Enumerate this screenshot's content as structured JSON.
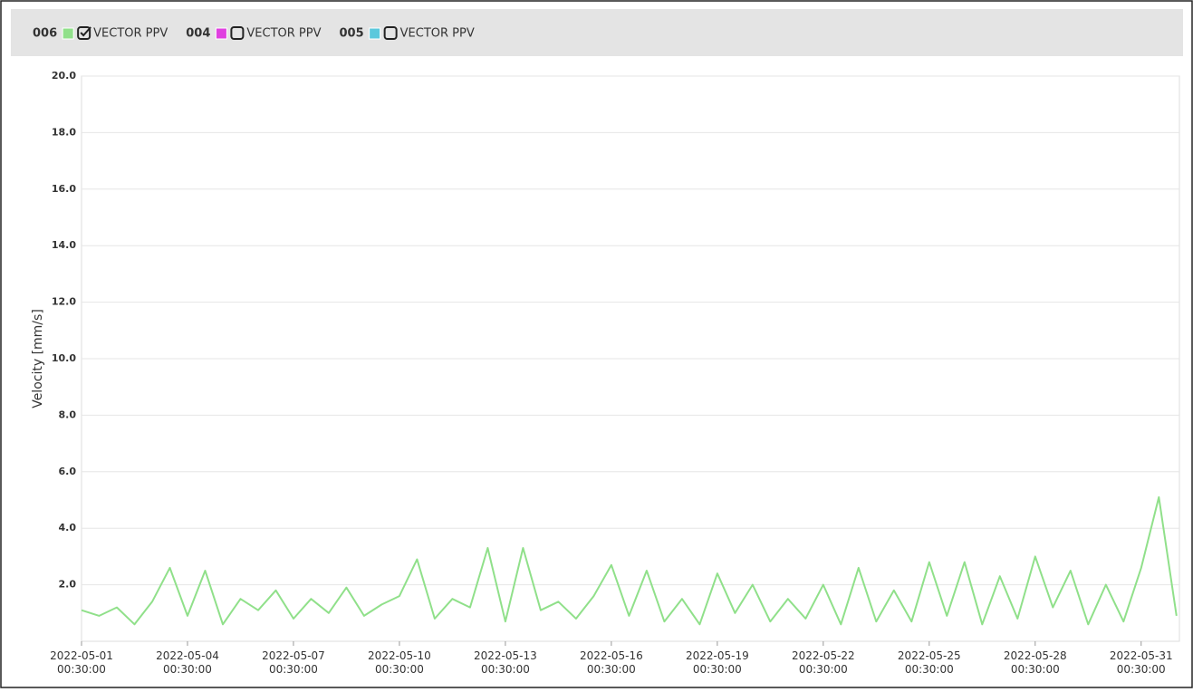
{
  "chart_data": {
    "type": "line",
    "ylabel": "Velocity [mm/s]",
    "series": [
      {
        "name": "006",
        "label": "VECTOR PPV",
        "color": "#90e08a",
        "checked": true,
        "values": [
          1.1,
          0.9,
          1.2,
          0.6,
          1.4,
          2.6,
          0.9,
          2.5,
          0.6,
          1.5,
          1.1,
          1.8,
          0.8,
          1.5,
          1.0,
          1.9,
          0.9,
          1.3,
          1.6,
          2.9,
          0.8,
          1.5,
          1.2,
          3.3,
          0.7,
          3.3,
          1.1,
          1.4,
          0.8,
          1.6,
          2.7,
          0.9,
          2.5,
          0.7,
          1.5,
          0.6,
          2.4,
          1.0,
          2.0,
          0.7,
          1.5,
          0.8,
          2.0,
          0.6,
          2.6,
          0.7,
          1.8,
          0.7,
          2.8,
          0.9,
          2.8,
          0.6,
          2.3,
          0.8,
          3.0,
          1.2,
          2.5,
          0.6,
          2.0,
          0.7,
          2.6,
          5.1,
          0.9
        ]
      },
      {
        "name": "004",
        "label": "VECTOR PPV",
        "color": "#e040e0",
        "checked": false
      },
      {
        "name": "005",
        "label": "VECTOR PPV",
        "color": "#5bc8dc",
        "checked": false
      }
    ],
    "x": [
      "2022-05-01 00:30:00",
      "2022-05-01 12:30:00",
      "2022-05-02 00:30:00",
      "2022-05-02 12:30:00",
      "2022-05-03 00:30:00",
      "2022-05-03 12:30:00",
      "2022-05-04 00:30:00",
      "2022-05-04 12:30:00",
      "2022-05-05 00:30:00",
      "2022-05-05 12:30:00",
      "2022-05-06 00:30:00",
      "2022-05-06 12:30:00",
      "2022-05-07 00:30:00",
      "2022-05-07 12:30:00",
      "2022-05-08 00:30:00",
      "2022-05-08 12:30:00",
      "2022-05-09 00:30:00",
      "2022-05-09 12:30:00",
      "2022-05-10 00:30:00",
      "2022-05-10 12:30:00",
      "2022-05-11 00:30:00",
      "2022-05-11 12:30:00",
      "2022-05-12 00:30:00",
      "2022-05-12 12:30:00",
      "2022-05-13 00:30:00",
      "2022-05-13 12:30:00",
      "2022-05-14 00:30:00",
      "2022-05-14 12:30:00",
      "2022-05-15 00:30:00",
      "2022-05-15 12:30:00",
      "2022-05-16 00:30:00",
      "2022-05-16 12:30:00",
      "2022-05-17 00:30:00",
      "2022-05-17 12:30:00",
      "2022-05-18 00:30:00",
      "2022-05-18 12:30:00",
      "2022-05-19 00:30:00",
      "2022-05-19 12:30:00",
      "2022-05-20 00:30:00",
      "2022-05-20 12:30:00",
      "2022-05-21 00:30:00",
      "2022-05-21 12:30:00",
      "2022-05-22 00:30:00",
      "2022-05-22 12:30:00",
      "2022-05-23 00:30:00",
      "2022-05-23 12:30:00",
      "2022-05-24 00:30:00",
      "2022-05-24 12:30:00",
      "2022-05-25 00:30:00",
      "2022-05-25 12:30:00",
      "2022-05-26 00:30:00",
      "2022-05-26 12:30:00",
      "2022-05-27 00:30:00",
      "2022-05-27 12:30:00",
      "2022-05-28 00:30:00",
      "2022-05-28 12:30:00",
      "2022-05-29 00:30:00",
      "2022-05-29 12:30:00",
      "2022-05-30 00:30:00",
      "2022-05-30 12:30:00",
      "2022-05-31 00:30:00",
      "2022-05-31 12:30:00",
      "2022-06-01 00:30:00"
    ],
    "xlim": [
      "2022-05-01 00:30:00",
      "2022-06-01 02:30:00"
    ],
    "xticks": [
      "2022-05-01 00:30:00",
      "2022-05-04 00:30:00",
      "2022-05-07 00:30:00",
      "2022-05-10 00:30:00",
      "2022-05-13 00:30:00",
      "2022-05-16 00:30:00",
      "2022-05-19 00:30:00",
      "2022-05-22 00:30:00",
      "2022-05-25 00:30:00",
      "2022-05-28 00:30:00",
      "2022-05-31 00:30:00"
    ],
    "ylim": [
      0,
      20
    ],
    "yticks": [
      {
        "value": 2,
        "label": "2.0"
      },
      {
        "value": 4,
        "label": "4.0"
      },
      {
        "value": 6,
        "label": "6.0"
      },
      {
        "value": 8,
        "label": "8.0"
      },
      {
        "value": 10,
        "label": "10.0"
      },
      {
        "value": 12,
        "label": "12.0"
      },
      {
        "value": 14,
        "label": "14.0"
      },
      {
        "value": 16,
        "label": "16.0"
      },
      {
        "value": 18,
        "label": "18.0"
      },
      {
        "value": 20,
        "label": "20.0"
      }
    ],
    "grid": true
  }
}
